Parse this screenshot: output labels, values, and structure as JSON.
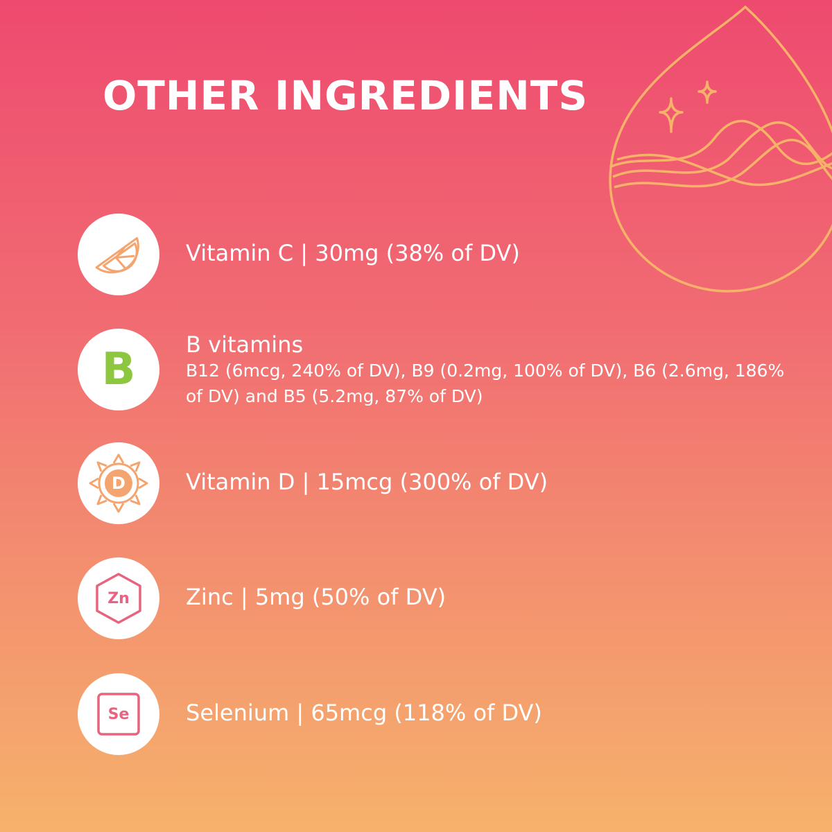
{
  "header": {
    "title": "OTHER INGREDIENTS"
  },
  "items": [
    {
      "label": "Vitamin C | 30mg (38% of DV)"
    },
    {
      "icon": "B",
      "label": "B vitamins",
      "detail": "B12 (6mcg, 240% of DV), B9 (0.2mg, 100% of DV), B6 (2.6mg, 186% of DV) and B5 (5.2mg, 87% of DV)"
    },
    {
      "icon": "D",
      "label": "Vitamin D | 15mcg (300% of DV)"
    },
    {
      "icon": "Zn",
      "label": "Zinc | 5mg (50% of DV)"
    },
    {
      "icon": "Se",
      "label": "Selenium | 65mcg (118% of DV)"
    }
  ]
}
